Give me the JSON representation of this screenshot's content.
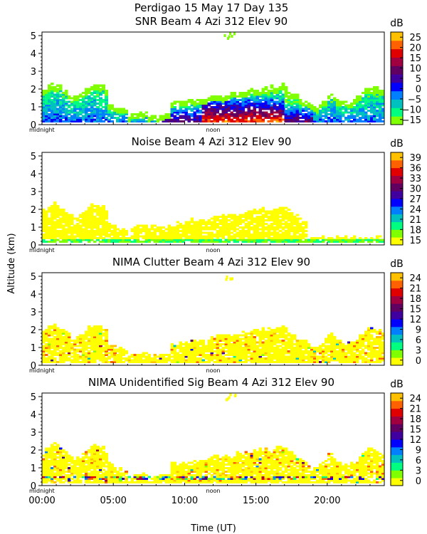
{
  "figure": {
    "header": "Perdigao  15 May 17 Day 135",
    "y_axis_label": "Altitude (km)",
    "x_axis_label": "Time (UT)",
    "x_tick_labels": [
      "00:00",
      "05:00",
      "10:00",
      "15:00",
      "20:00"
    ],
    "x_ticks_hours": [
      0,
      5,
      10,
      15,
      20
    ],
    "marker_midnight": "midnight",
    "marker_noon": "noon"
  },
  "chart_data": [
    {
      "type": "heatmap",
      "title": "SNR Beam 4 Azi 312 Elev 90",
      "xlabel": "Time (UT)",
      "ylabel": "Altitude (km)",
      "xlim": [
        0,
        24
      ],
      "ylim": [
        0,
        5.2
      ],
      "y_ticks": [
        0,
        1,
        2,
        3,
        4,
        5
      ],
      "colorbar": {
        "unit": "dB",
        "min": -17.5,
        "max": 27.5,
        "tick_values": [
          25,
          20,
          15,
          10,
          5,
          0,
          -5,
          -10,
          -15
        ],
        "tick_labels": [
          "25",
          "20",
          "15",
          "10",
          "5",
          "0",
          "−5",
          "−10",
          "−15"
        ],
        "colors": [
          "#80ff00",
          "#00ff80",
          "#00c0c0",
          "#0080ff",
          "#0000ff",
          "#4000a0",
          "#600060",
          "#a00040",
          "#e00000",
          "#ff6000",
          "#ffc000"
        ]
      }
    },
    {
      "type": "heatmap",
      "title": "Noise Beam 4 Azi 312 Elev 90",
      "xlabel": "Time (UT)",
      "ylabel": "Altitude (km)",
      "xlim": [
        0,
        24
      ],
      "ylim": [
        0,
        5.2
      ],
      "y_ticks": [
        0,
        1,
        2,
        3,
        4,
        5
      ],
      "colorbar": {
        "unit": "dB",
        "min": 13.5,
        "max": 40.5,
        "tick_values": [
          39,
          36,
          33,
          30,
          27,
          24,
          21,
          18,
          15
        ],
        "tick_labels": [
          "39",
          "36",
          "33",
          "30",
          "27",
          "24",
          "21",
          "18",
          "15"
        ],
        "colors": [
          "#ffff00",
          "#80ff00",
          "#00ff80",
          "#00c0c0",
          "#0080ff",
          "#0000ff",
          "#4000a0",
          "#600060",
          "#a00040",
          "#e00000",
          "#ff6000",
          "#ffc000"
        ]
      }
    },
    {
      "type": "heatmap",
      "title": "NIMA Clutter Beam 4 Azi 312 Elev 90",
      "xlabel": "Time (UT)",
      "ylabel": "Altitude (km)",
      "xlim": [
        0,
        24
      ],
      "ylim": [
        0,
        5.2
      ],
      "y_ticks": [
        0,
        1,
        2,
        3,
        4,
        5
      ],
      "colorbar": {
        "unit": "dB",
        "min": -1.5,
        "max": 25.5,
        "tick_values": [
          24,
          21,
          18,
          15,
          12,
          9,
          6,
          3,
          0
        ],
        "tick_labels": [
          "24",
          "21",
          "18",
          "15",
          "12",
          "9",
          "6",
          "3",
          "0"
        ],
        "colors": [
          "#ffff00",
          "#80ff00",
          "#00ff80",
          "#00c0c0",
          "#0080ff",
          "#0000ff",
          "#4000a0",
          "#600060",
          "#a00040",
          "#e00000",
          "#ff6000",
          "#ffc000"
        ]
      }
    },
    {
      "type": "heatmap",
      "title": "NIMA Unidentified Sig Beam 4 Azi 312 Elev 90",
      "xlabel": "Time (UT)",
      "ylabel": "Altitude (km)",
      "xlim": [
        0,
        24
      ],
      "ylim": [
        0,
        5.2
      ],
      "y_ticks": [
        0,
        1,
        2,
        3,
        4,
        5
      ],
      "colorbar": {
        "unit": "dB",
        "min": -1.5,
        "max": 25.5,
        "tick_values": [
          24,
          21,
          18,
          15,
          12,
          9,
          6,
          3,
          0
        ],
        "tick_labels": [
          "24",
          "21",
          "18",
          "15",
          "12",
          "9",
          "6",
          "3",
          "0"
        ],
        "colors": [
          "#ffff00",
          "#80ff00",
          "#00ff80",
          "#00c0c0",
          "#0080ff",
          "#0000ff",
          "#4000a0",
          "#600060",
          "#a00040",
          "#e00000",
          "#ff6000",
          "#ffc000"
        ]
      }
    }
  ]
}
